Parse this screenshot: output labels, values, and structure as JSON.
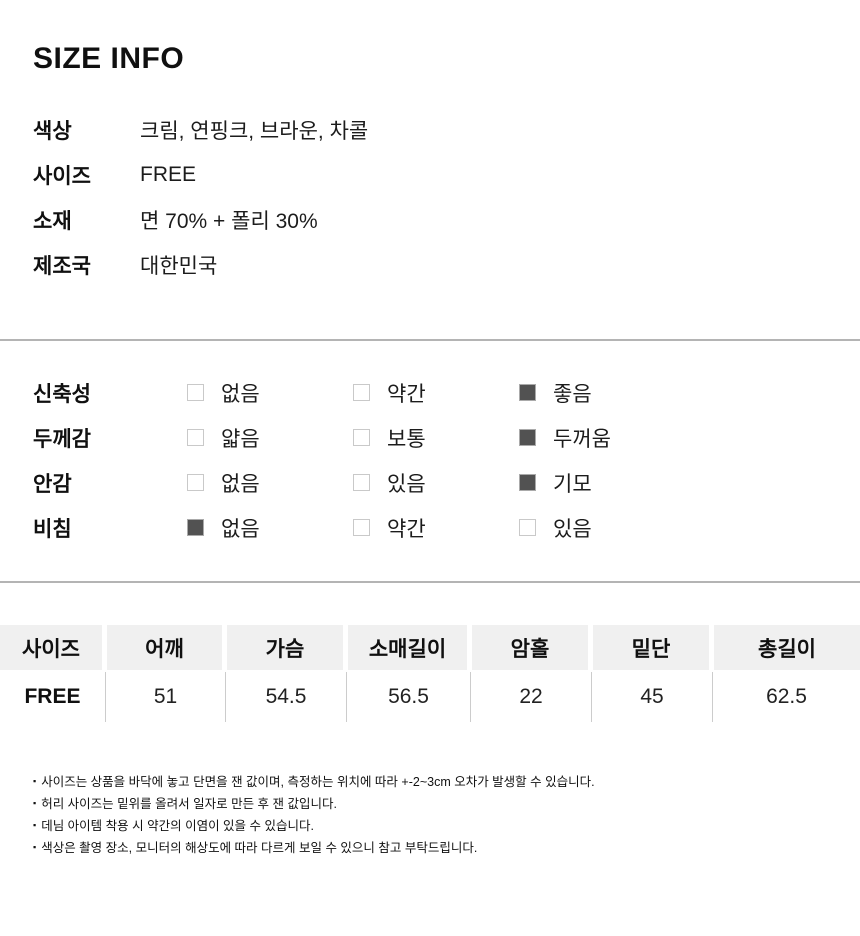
{
  "title": "SIZE INFO",
  "product_info": {
    "rows": [
      {
        "label": "색상",
        "value": "크림, 연핑크, 브라운, 차콜"
      },
      {
        "label": "사이즈",
        "value": "FREE"
      },
      {
        "label": "소재",
        "value": "면 70% + 폴리 30%"
      },
      {
        "label": "제조국",
        "value": "대한민국"
      }
    ]
  },
  "attributes": {
    "rows": [
      {
        "label": "신축성",
        "options": [
          {
            "label": "없음",
            "state": "unchecked"
          },
          {
            "label": "약간",
            "state": "unchecked"
          },
          {
            "label": "좋음",
            "state": "checked"
          }
        ]
      },
      {
        "label": "두께감",
        "options": [
          {
            "label": "얇음",
            "state": "unchecked"
          },
          {
            "label": "보통",
            "state": "unchecked"
          },
          {
            "label": "두꺼움",
            "state": "checked"
          }
        ]
      },
      {
        "label": "안감",
        "options": [
          {
            "label": "없음",
            "state": "unchecked"
          },
          {
            "label": "있음",
            "state": "unchecked"
          },
          {
            "label": "기모",
            "state": "checked"
          }
        ]
      },
      {
        "label": "비침",
        "options": [
          {
            "label": "없음",
            "state": "checked"
          },
          {
            "label": "약간",
            "state": "unchecked"
          },
          {
            "label": "있음",
            "state": "unchecked"
          }
        ]
      }
    ]
  },
  "size_table": {
    "columns": [
      "사이즈",
      "어깨",
      "가슴",
      "소매길이",
      "암홀",
      "밑단",
      "총길이"
    ],
    "rows": [
      [
        "FREE",
        "51",
        "54.5",
        "56.5",
        "22",
        "45",
        "62.5"
      ]
    ]
  },
  "notes_bullet": "▪",
  "notes": [
    "사이즈는 상품을 바닥에 놓고 단면을 잰 값이며, 측정하는 위치에 따라 +-2~3cm 오차가 발생할 수 있습니다.",
    "허리 사이즈는 밑위를 올려서 일자로 만든 후 잰 값입니다.",
    "데님 아이템 착용 시 약간의 이염이 있을 수 있습니다.",
    "색상은 촬영 장소, 모니터의 해상도에 따라 다르게 보일 수 있으니 참고 부탁드립니다."
  ],
  "colors": {
    "checked_box": "#525252",
    "unchecked_box_border": "#c9c9c9",
    "divider": "#b4b4b4",
    "table_header_bg": "#f0f0f0",
    "table_cell_divider": "#cccccc",
    "text": "#111111"
  }
}
